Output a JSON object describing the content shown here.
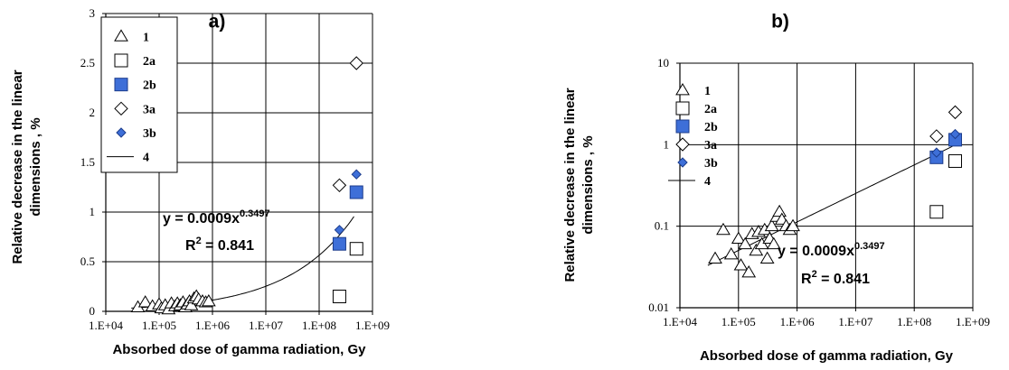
{
  "chart_data": [
    {
      "type": "scatter",
      "panel_label": "a)",
      "xscale": "log",
      "yscale": "linear",
      "xlim": [
        10000,
        1000000000
      ],
      "ylim": [
        0,
        3
      ],
      "xticks": [
        10000,
        100000,
        1000000,
        10000000,
        100000000,
        1000000000
      ],
      "xtick_labels": [
        "1.E+04",
        "1.E+05",
        "1.E+06",
        "1.E+07",
        "1.E+08",
        "1.E+09"
      ],
      "yticks": [
        0,
        0.5,
        1,
        1.5,
        2,
        2.5,
        3
      ],
      "ytick_labels": [
        "0",
        "0.5",
        "1",
        "1.5",
        "2",
        "2.5",
        "3"
      ],
      "ylabel_lines": [
        "Relative decrease in the linear",
        "dimensions , %"
      ],
      "xlabel": "Absorbed dose of gamma radiation, Gy",
      "grid": true,
      "legend_position": "top-left",
      "equation": {
        "prefix": "y = 0.0009x",
        "exponent": "0.3497",
        "r2_prefix": "R",
        "r2_sup": "2",
        "r2_value": " = 0.841"
      },
      "fit": {
        "a": 0.0009,
        "b": 0.3497,
        "xrange": [
          30000,
          450000000
        ]
      },
      "series": [
        {
          "name": "1",
          "marker": "triangle",
          "points": [
            [
              40000,
              0.04
            ],
            [
              55000,
              0.09
            ],
            [
              75000,
              0.05
            ],
            [
              100000,
              0.07
            ],
            [
              110000,
              0.03
            ],
            [
              130000,
              0.06
            ],
            [
              150000,
              0.02
            ],
            [
              170000,
              0.08
            ],
            [
              200000,
              0.05
            ],
            [
              220000,
              0.08
            ],
            [
              250000,
              0.06
            ],
            [
              280000,
              0.09
            ],
            [
              310000,
              0.04
            ],
            [
              340000,
              0.07
            ],
            [
              370000,
              0.1
            ],
            [
              400000,
              0.06
            ],
            [
              450000,
              0.13
            ],
            [
              500000,
              0.15
            ],
            [
              550000,
              0.12
            ],
            [
              650000,
              0.1
            ],
            [
              750000,
              0.09
            ],
            [
              850000,
              0.1
            ]
          ]
        },
        {
          "name": "2a",
          "marker": "square-open",
          "points": [
            [
              240000000,
              0.15
            ],
            [
              500000000,
              0.63
            ]
          ]
        },
        {
          "name": "2b",
          "marker": "square-filled",
          "points": [
            [
              240000000,
              0.68
            ],
            [
              500000000,
              1.2
            ]
          ]
        },
        {
          "name": "3a",
          "marker": "diamond-open",
          "points": [
            [
              240000000,
              1.27
            ],
            [
              500000000,
              2.5
            ]
          ]
        },
        {
          "name": "3b",
          "marker": "diamond-filled",
          "points": [
            [
              240000000,
              0.82
            ],
            [
              500000000,
              1.38
            ]
          ]
        },
        {
          "name": "4",
          "marker": "line"
        }
      ]
    },
    {
      "type": "scatter",
      "panel_label": "b)",
      "xscale": "log",
      "yscale": "log",
      "xlim": [
        10000,
        1000000000
      ],
      "ylim": [
        0.01,
        10
      ],
      "xticks": [
        10000,
        100000,
        1000000,
        10000000,
        100000000,
        1000000000
      ],
      "xtick_labels": [
        "1.E+04",
        "1.E+05",
        "1.E+06",
        "1.E+07",
        "1.E+08",
        "1.E+09"
      ],
      "yticks": [
        0.01,
        0.1,
        1,
        10
      ],
      "ytick_labels": [
        "0.01",
        "0.1",
        "1",
        "10"
      ],
      "ylabel_lines": [
        "Relative decrease in the linear",
        "dimensions , %"
      ],
      "xlabel": "Absorbed dose of gamma radiation, Gy",
      "grid": true,
      "legend_position": "top-left",
      "equation": {
        "prefix": "y = 0.0009x",
        "exponent": "0.3497",
        "r2_prefix": "R",
        "r2_sup": "2",
        "r2_value": " = 0.841"
      },
      "fit": {
        "a": 0.0009,
        "b": 0.3497,
        "xrange": [
          30000,
          450000000
        ]
      },
      "series": [
        {
          "name": "1",
          "marker": "triangle",
          "points": [
            [
              40000,
              0.04
            ],
            [
              55000,
              0.09
            ],
            [
              75000,
              0.045
            ],
            [
              100000,
              0.07
            ],
            [
              110000,
              0.033
            ],
            [
              130000,
              0.06
            ],
            [
              150000,
              0.027
            ],
            [
              170000,
              0.08
            ],
            [
              200000,
              0.05
            ],
            [
              220000,
              0.085
            ],
            [
              250000,
              0.06
            ],
            [
              280000,
              0.09
            ],
            [
              310000,
              0.04
            ],
            [
              340000,
              0.07
            ],
            [
              370000,
              0.1
            ],
            [
              400000,
              0.06
            ],
            [
              450000,
              0.13
            ],
            [
              500000,
              0.15
            ],
            [
              550000,
              0.12
            ],
            [
              650000,
              0.1
            ],
            [
              750000,
              0.09
            ],
            [
              850000,
              0.1
            ]
          ]
        },
        {
          "name": "2a",
          "marker": "square-open",
          "points": [
            [
              240000000,
              0.15
            ],
            [
              500000000,
              0.63
            ]
          ]
        },
        {
          "name": "2b",
          "marker": "square-filled",
          "points": [
            [
              240000000,
              0.7
            ],
            [
              500000000,
              1.15
            ]
          ]
        },
        {
          "name": "3a",
          "marker": "diamond-open",
          "points": [
            [
              240000000,
              1.27
            ],
            [
              500000000,
              2.5
            ]
          ]
        },
        {
          "name": "3b",
          "marker": "diamond-filled",
          "points": [
            [
              240000000,
              0.8
            ],
            [
              500000000,
              1.35
            ]
          ]
        },
        {
          "name": "4",
          "marker": "line"
        }
      ]
    }
  ],
  "colors": {
    "filled_marker": "#3e6fd8",
    "grid": "#000000",
    "axes": "#000000"
  }
}
